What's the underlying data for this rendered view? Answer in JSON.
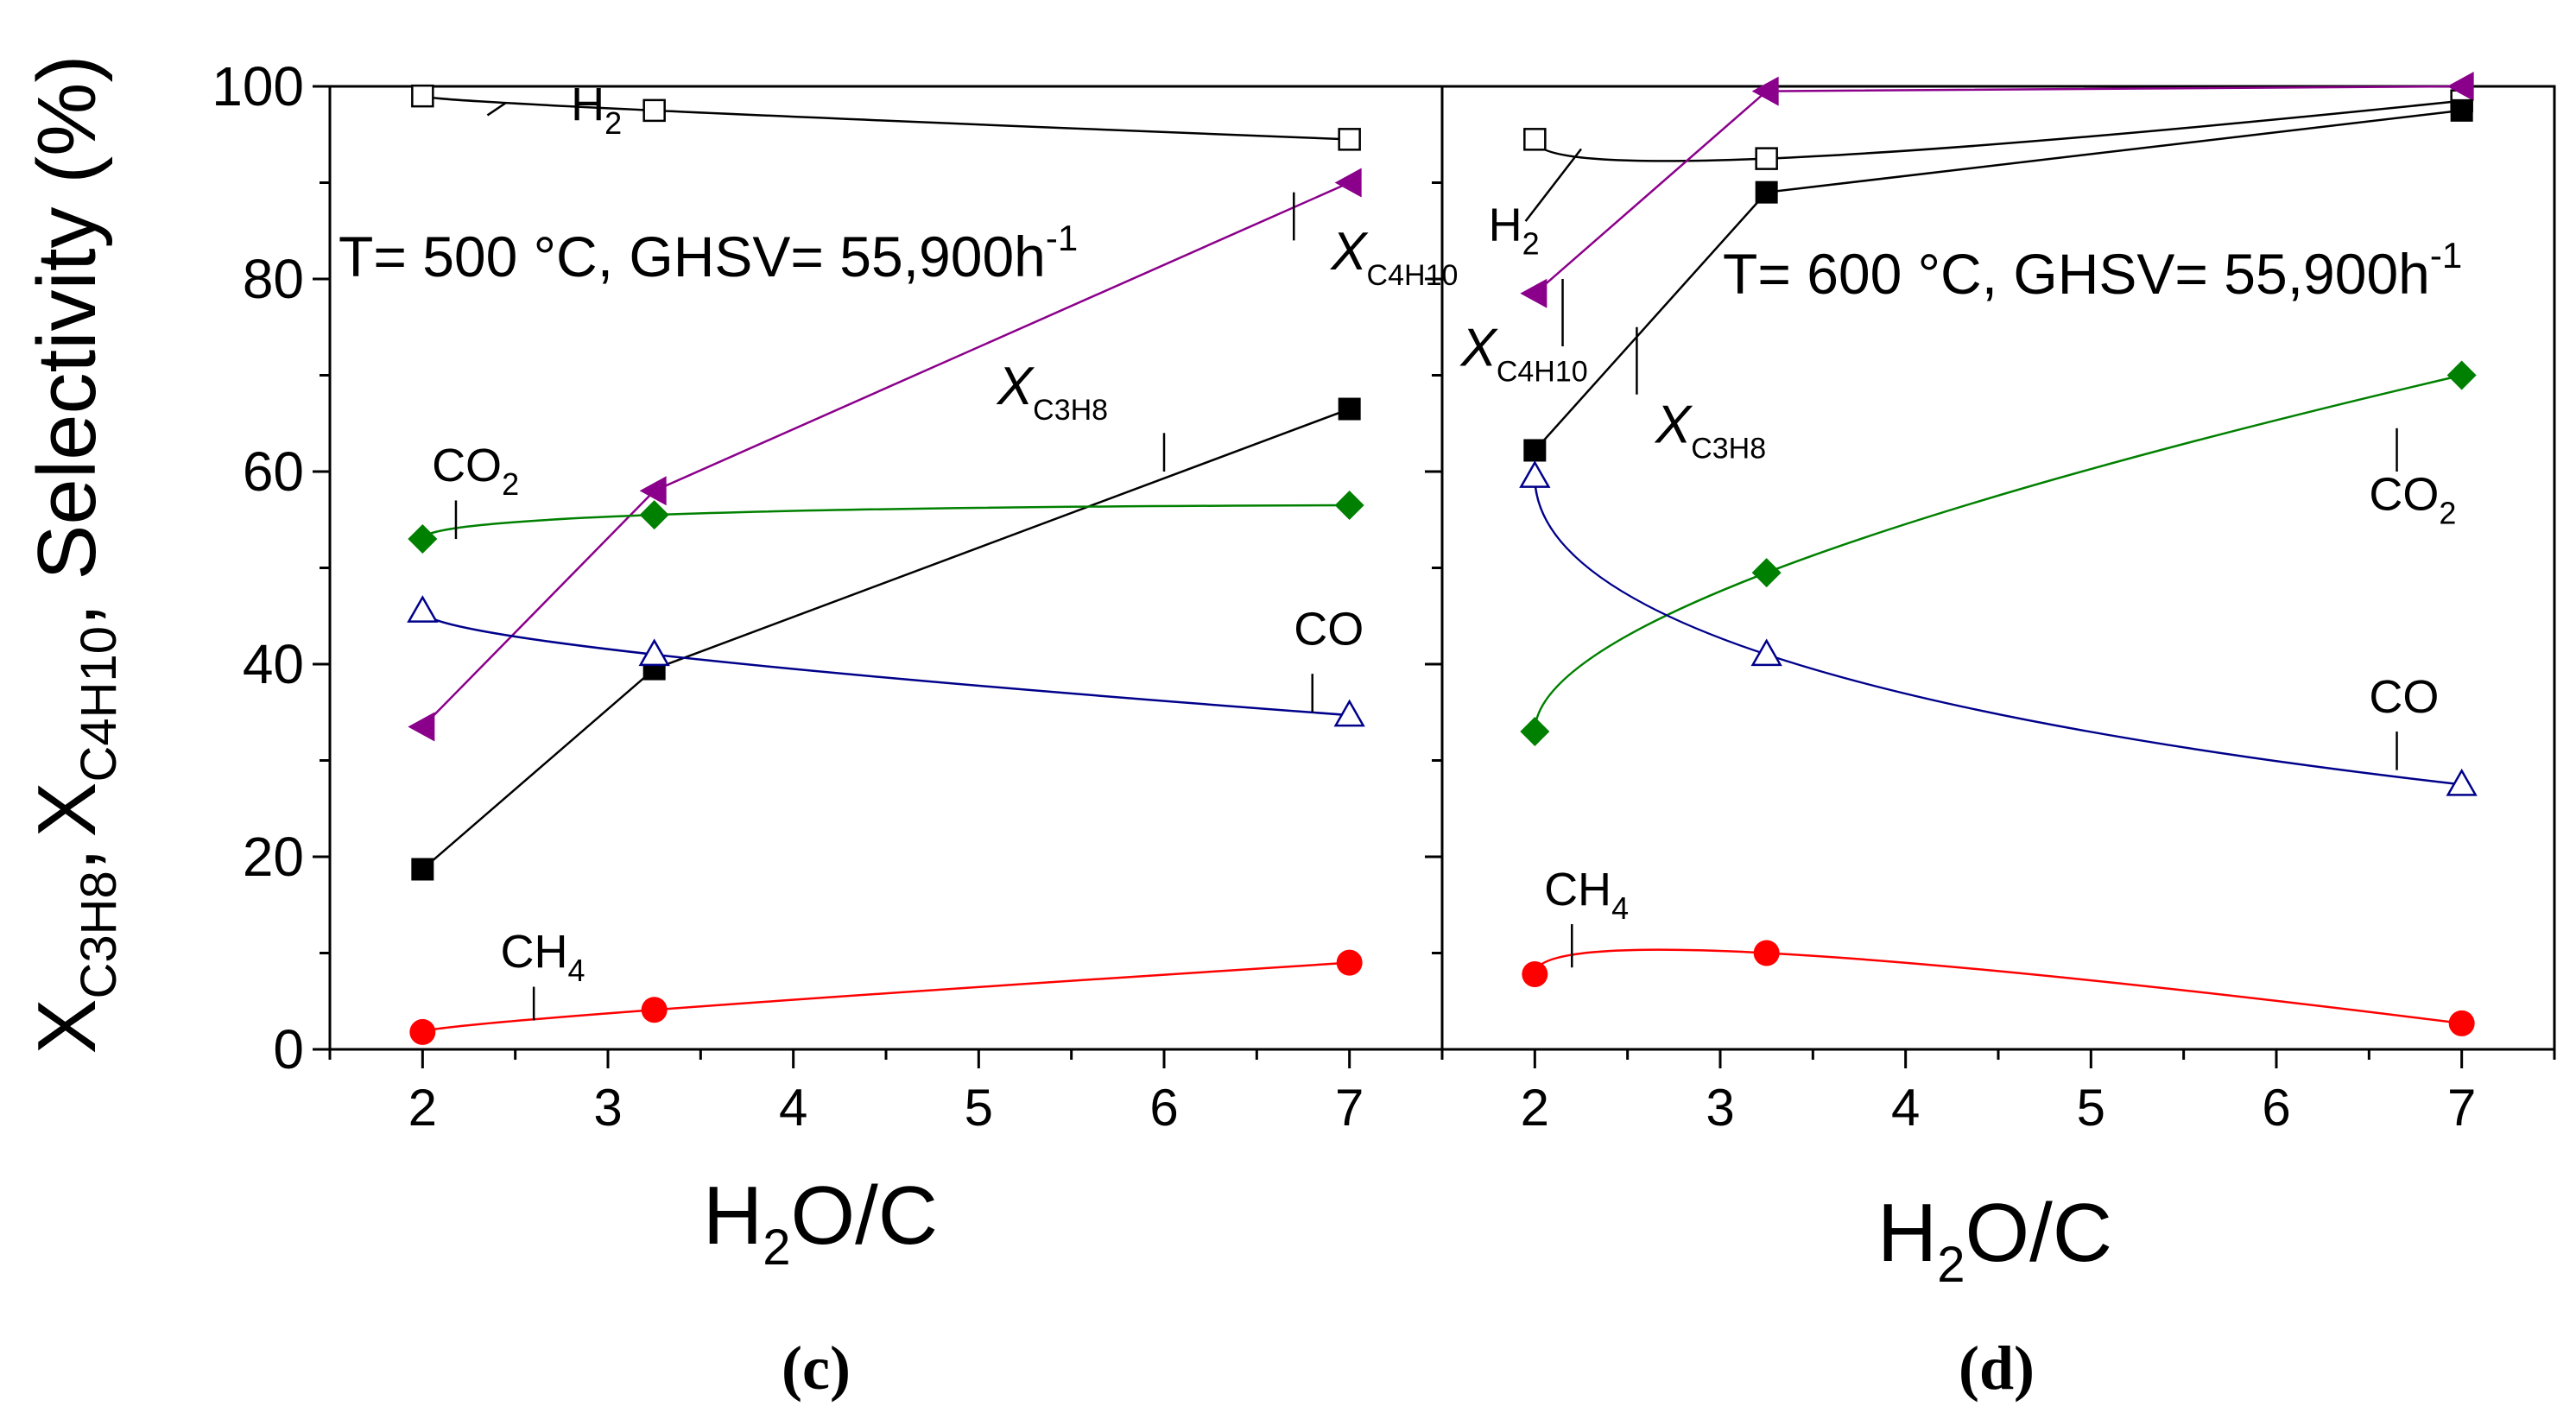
{
  "figure": {
    "ylabel": {
      "x_letter": "X",
      "c3h8": "C3H8",
      "comma": ",",
      "c4h10": "C4H10",
      "suffix": ", Selectivity (%)"
    },
    "colors": {
      "black": "#000000",
      "purple": "#8B008B",
      "green": "#008000",
      "blue": "#00008B",
      "red": "#FF0000"
    }
  },
  "chart_data": [
    {
      "type": "line",
      "panel_label": "(c)",
      "condition": {
        "text": "T= 500 °C, GHSV= 55,900h",
        "superscript": "-1"
      },
      "xlabel": {
        "prefix": "H",
        "sub": "2",
        "suffix": "O/C"
      },
      "xlim": [
        1.5,
        7.5
      ],
      "ylim": [
        0,
        100
      ],
      "xticks": [
        2,
        3,
        4,
        5,
        6,
        7
      ],
      "yticks": [
        0,
        20,
        40,
        60,
        80,
        100
      ],
      "x": [
        2,
        3.25,
        7
      ],
      "series": [
        {
          "name": "H2",
          "label_main": "H",
          "label_sub": "2",
          "values": [
            99,
            97.5,
            94.5
          ],
          "marker": "open-square",
          "color": "#000000",
          "fit": "smooth",
          "label_at": [
            2.8,
            96.5
          ],
          "leader": [
            [
              2.35,
              97.0
            ],
            [
              2.45,
              98.3
            ]
          ]
        },
        {
          "name": "X_C4H10",
          "label_main": "X",
          "label_sub": "C4H10",
          "values": [
            33.5,
            58,
            90
          ],
          "marker": "left-triangle",
          "color": "#8B008B",
          "fit": "segments",
          "label_at": [
            6.9,
            81
          ],
          "leader": [
            [
              6.7,
              84
            ],
            [
              6.7,
              89
            ]
          ]
        },
        {
          "name": "X_C3H8",
          "label_main": "X",
          "label_sub": "C3H8",
          "values": [
            18.7,
            39.5,
            66.5
          ],
          "marker": "filled-square",
          "color": "#000000",
          "fit": "segments",
          "label_at": [
            5.1,
            67
          ],
          "leader": [
            [
              6.0,
              60
            ],
            [
              6.0,
              64
            ]
          ]
        },
        {
          "name": "CO2",
          "label_main": "CO",
          "label_sub": "2",
          "values": [
            53,
            55.5,
            56.5
          ],
          "marker": "diamond",
          "color": "#008000",
          "fit": "smooth",
          "label_at": [
            2.05,
            59
          ],
          "leader": [
            [
              2.18,
              53
            ],
            [
              2.18,
              57
            ]
          ]
        },
        {
          "name": "CO",
          "label_main": "CO",
          "label_sub": "",
          "values": [
            45.5,
            41,
            34.7
          ],
          "marker": "open-triangle",
          "color": "#00008B",
          "fit": "smooth",
          "label_at": [
            6.7,
            42
          ],
          "leader": [
            [
              6.8,
              35
            ],
            [
              6.8,
              39
            ]
          ]
        },
        {
          "name": "CH4",
          "label_main": "CH",
          "label_sub": "4",
          "values": [
            1.8,
            4.1,
            9
          ],
          "marker": "circle",
          "color": "#FF0000",
          "fit": "smooth",
          "label_at": [
            2.42,
            8.5
          ],
          "leader": [
            [
              2.6,
              3.0
            ],
            [
              2.6,
              6.5
            ]
          ]
        }
      ]
    },
    {
      "type": "line",
      "panel_label": "(d)",
      "condition": {
        "text": "T= 600 °C, GHSV= 55,900h",
        "superscript": "-1"
      },
      "xlabel": {
        "prefix": "H",
        "sub": "2",
        "suffix": "O/C"
      },
      "xlim": [
        1.5,
        7.5
      ],
      "ylim": [
        0,
        100
      ],
      "xticks": [
        2,
        3,
        4,
        5,
        6,
        7
      ],
      "yticks": [
        0,
        20,
        40,
        60,
        80,
        100
      ],
      "x": [
        2,
        3.25,
        7
      ],
      "series": [
        {
          "name": "H2",
          "label_main": "H",
          "label_sub": "2",
          "values": [
            94.5,
            92.5,
            98.5
          ],
          "marker": "open-square",
          "color": "#000000",
          "fit": "smooth",
          "label_at": [
            1.75,
            84
          ],
          "leader": [
            [
              1.95,
              86
            ],
            [
              2.25,
              93.5
            ]
          ]
        },
        {
          "name": "X_C4H10",
          "label_main": "X",
          "label_sub": "C4H10",
          "values": [
            78.5,
            99.5,
            100
          ],
          "marker": "left-triangle",
          "color": "#8B008B",
          "fit": "segments",
          "label_at": [
            1.6,
            71
          ],
          "leader": [
            [
              2.15,
              73
            ],
            [
              2.15,
              80
            ]
          ]
        },
        {
          "name": "X_C3H8",
          "label_main": "X",
          "label_sub": "C3H8",
          "values": [
            62.2,
            89,
            97.5
          ],
          "marker": "filled-square",
          "color": "#000000",
          "fit": "segments",
          "label_at": [
            2.65,
            63
          ],
          "leader": [
            [
              2.55,
              68
            ],
            [
              2.55,
              75
            ]
          ]
        },
        {
          "name": "CO2",
          "label_main": "CO",
          "label_sub": "2",
          "values": [
            33,
            49.5,
            70
          ],
          "marker": "diamond",
          "color": "#008000",
          "fit": "smooth",
          "label_at": [
            6.5,
            56
          ],
          "leader": [
            [
              6.65,
              60
            ],
            [
              6.65,
              64.5
            ]
          ]
        },
        {
          "name": "CO",
          "label_main": "CO",
          "label_sub": "",
          "values": [
            59.5,
            41,
            27.5
          ],
          "marker": "open-triangle",
          "color": "#00008B",
          "fit": "smooth",
          "label_at": [
            6.5,
            35
          ],
          "leader": [
            [
              6.65,
              29
            ],
            [
              6.65,
              33
            ]
          ]
        },
        {
          "name": "CH4",
          "label_main": "CH",
          "label_sub": "4",
          "values": [
            7.8,
            10,
            2.7
          ],
          "marker": "circle",
          "color": "#FF0000",
          "fit": "smooth",
          "label_at": [
            2.05,
            15
          ],
          "leader": [
            [
              2.2,
              8.5
            ],
            [
              2.2,
              13
            ]
          ]
        }
      ]
    }
  ]
}
